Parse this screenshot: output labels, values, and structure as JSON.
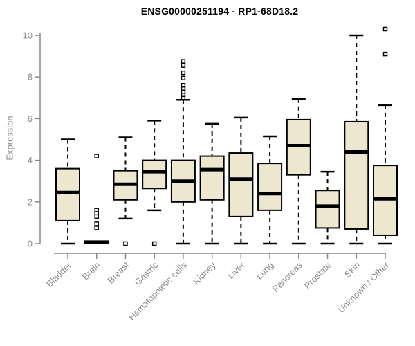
{
  "colors": {
    "box_fill": "#ede7d0",
    "box_stroke": "#000000",
    "axis": "#888888",
    "tick_label": "#8c8c8c",
    "title": "#000000"
  },
  "chart_data": {
    "type": "boxplot",
    "title": "ENSG00000251194 - RP1-68D18.2",
    "xlabel": "",
    "ylabel": "Expression",
    "ylim": [
      0,
      10.4
    ],
    "yticks": [
      0,
      2,
      4,
      6,
      8,
      10
    ],
    "grid": false,
    "categories": [
      "Bladder",
      "Brain",
      "Breast",
      "Gastric",
      "Hematopoietic cells",
      "Kidney",
      "Liver",
      "Lung",
      "Pancreas",
      "Prostate",
      "Skin",
      "Unknown / Other"
    ],
    "series": [
      {
        "name": "Bladder",
        "whisker_low": 0,
        "q1": 1.1,
        "median": 2.45,
        "q3": 3.6,
        "whisker_high": 5.0,
        "outliers": []
      },
      {
        "name": "Brain",
        "whisker_low": 0,
        "q1": 0.02,
        "median": 0.05,
        "q3": 0.12,
        "whisker_high": 0.15,
        "outliers": [
          4.2,
          1.6,
          1.45,
          1.3,
          0.95,
          0.75
        ]
      },
      {
        "name": "Breast",
        "whisker_low": 1.2,
        "q1": 2.1,
        "median": 2.85,
        "q3": 3.5,
        "whisker_high": 5.1,
        "outliers": [
          0.0
        ]
      },
      {
        "name": "Gastric",
        "whisker_low": 1.6,
        "q1": 2.65,
        "median": 3.45,
        "q3": 4.0,
        "whisker_high": 5.9,
        "outliers": [
          0.0
        ]
      },
      {
        "name": "Hematopoietic cells",
        "whisker_low": 0,
        "q1": 2.0,
        "median": 3.0,
        "q3": 4.0,
        "whisker_high": 6.9,
        "outliers": [
          7.0,
          7.15,
          7.3,
          7.45,
          7.6,
          7.95,
          8.2,
          8.55,
          8.75
        ]
      },
      {
        "name": "Kidney",
        "whisker_low": 0,
        "q1": 2.1,
        "median": 3.55,
        "q3": 4.2,
        "whisker_high": 5.75,
        "outliers": []
      },
      {
        "name": "Liver",
        "whisker_low": 0,
        "q1": 1.3,
        "median": 3.1,
        "q3": 4.35,
        "whisker_high": 6.05,
        "outliers": []
      },
      {
        "name": "Lung",
        "whisker_low": 0,
        "q1": 1.6,
        "median": 2.4,
        "q3": 3.85,
        "whisker_high": 5.15,
        "outliers": []
      },
      {
        "name": "Pancreas",
        "whisker_low": 0,
        "q1": 3.3,
        "median": 4.7,
        "q3": 5.95,
        "whisker_high": 6.95,
        "outliers": []
      },
      {
        "name": "Prostate",
        "whisker_low": 0,
        "q1": 0.75,
        "median": 1.8,
        "q3": 2.55,
        "whisker_high": 3.45,
        "outliers": []
      },
      {
        "name": "Skin",
        "whisker_low": 0,
        "q1": 0.7,
        "median": 4.4,
        "q3": 5.85,
        "whisker_high": 10.0,
        "outliers": []
      },
      {
        "name": "Unknown / Other",
        "whisker_low": 0,
        "q1": 0.4,
        "median": 2.15,
        "q3": 3.75,
        "whisker_high": 6.65,
        "outliers": [
          9.1,
          10.3
        ]
      }
    ]
  }
}
